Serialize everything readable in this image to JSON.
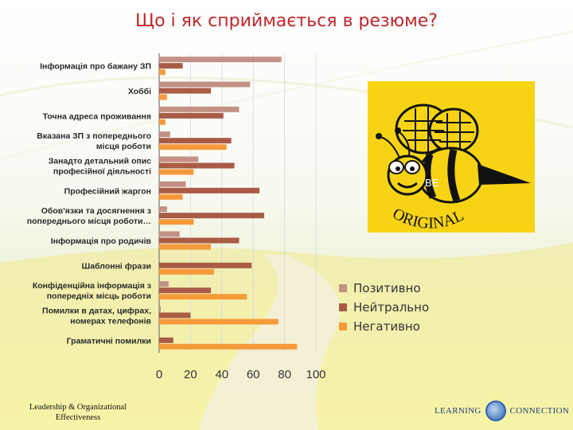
{
  "title": "Що і як сприймається в резюме?",
  "colors": {
    "positive": "#c29186",
    "neutral": "#a95b45",
    "negative": "#f59a3b",
    "title": "#c0262c",
    "bee_bg": "#f6d414"
  },
  "chart_data": {
    "type": "bar",
    "orientation": "horizontal",
    "categories": [
      "Інформація про бажану ЗП",
      "Хоббі",
      "Точна адреса проживання",
      "Вказана ЗП з попереднього місця роботи",
      "Занадто детальний опис професійної діяльності",
      "Професійний жаргон",
      "Обов'язки та досягнення з попереднього місця роботи…",
      "Інформація про родичів",
      "Шаблонні фрази",
      "Конфіденційна інформація з попередніх місць роботи",
      "Помилки в датах, цифрах, номерах телефонів",
      "Граматичні помилки"
    ],
    "label_lines": [
      [
        "Інформація про бажану ЗП"
      ],
      [
        "Хоббі"
      ],
      [
        "Точна адреса проживання"
      ],
      [
        "Вказана ЗП з попереднього",
        "місця роботи"
      ],
      [
        "Занадто детальний опис",
        "професійної діяльності"
      ],
      [
        "Професійний жаргон"
      ],
      [
        "Обов'язки та досягнення з",
        "попереднього місця роботи…"
      ],
      [
        "Інформація про родичів"
      ],
      [
        "Шаблонні фрази"
      ],
      [
        "Конфіденційна інформація з",
        "попередніх місць роботи"
      ],
      [
        "Помилки в датах, цифрах,",
        "номерах телефонів"
      ],
      [
        "Граматичні помилки"
      ]
    ],
    "series": [
      {
        "name": "Позитивно",
        "values": [
          78,
          58,
          51,
          7,
          25,
          17,
          5,
          13,
          0,
          6,
          1,
          0
        ]
      },
      {
        "name": "Нейтрально",
        "values": [
          15,
          33,
          41,
          46,
          48,
          64,
          67,
          51,
          59,
          33,
          20,
          9
        ]
      },
      {
        "name": "Негативно",
        "values": [
          4,
          5,
          4,
          43,
          22,
          15,
          22,
          33,
          35,
          56,
          76,
          88
        ]
      }
    ],
    "xlim": [
      0,
      100
    ],
    "xticks": [
      0,
      20,
      40,
      60,
      80,
      100
    ],
    "legend_position": "right"
  },
  "image": {
    "caption": "BE ORIGINAL",
    "be": "BE",
    "original": "ORIGINAL"
  },
  "footer": {
    "left_line1": "Leadership & Organizational",
    "left_line2": "Effectiveness",
    "right_word1": "LEARNING",
    "right_word2": "CONNECTION"
  }
}
